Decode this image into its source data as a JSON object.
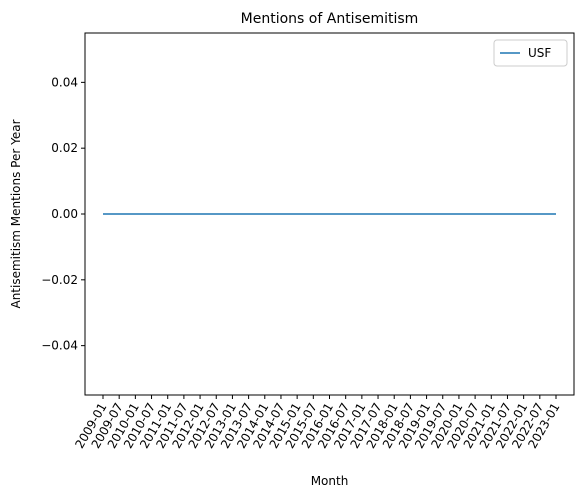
{
  "chart_data": {
    "type": "line",
    "title": "Mentions of Antisemitism",
    "xlabel": "Month",
    "ylabel": "Antisemitism Mentions Per Year",
    "ylim": [
      -0.055,
      0.055
    ],
    "yticks": [
      -0.04,
      -0.02,
      0.0,
      0.02,
      0.04
    ],
    "ytick_labels": [
      "−0.04",
      "−0.02",
      "0.00",
      "0.02",
      "0.04"
    ],
    "x_tick_labels": [
      "2009-01",
      "2009-07",
      "2010-01",
      "2010-07",
      "2011-01",
      "2011-07",
      "2012-01",
      "2012-07",
      "2013-01",
      "2013-07",
      "2014-01",
      "2014-07",
      "2015-01",
      "2015-07",
      "2016-01",
      "2016-07",
      "2017-01",
      "2017-07",
      "2018-01",
      "2018-07",
      "2019-01",
      "2019-07",
      "2020-01",
      "2020-07",
      "2021-01",
      "2021-07",
      "2022-01",
      "2022-07",
      "2023-01"
    ],
    "grid": false,
    "legend_position": "top-right",
    "series": [
      {
        "name": "USF",
        "color": "#1f77b4",
        "x": [
          "2009-01",
          "2009-07",
          "2010-01",
          "2010-07",
          "2011-01",
          "2011-07",
          "2012-01",
          "2012-07",
          "2013-01",
          "2013-07",
          "2014-01",
          "2014-07",
          "2015-01",
          "2015-07",
          "2016-01",
          "2016-07",
          "2017-01",
          "2017-07",
          "2018-01",
          "2018-07",
          "2019-01",
          "2019-07",
          "2020-01",
          "2020-07",
          "2021-01",
          "2021-07",
          "2022-01",
          "2022-07",
          "2023-01"
        ],
        "values": [
          0,
          0,
          0,
          0,
          0,
          0,
          0,
          0,
          0,
          0,
          0,
          0,
          0,
          0,
          0,
          0,
          0,
          0,
          0,
          0,
          0,
          0,
          0,
          0,
          0,
          0,
          0,
          0,
          0
        ]
      }
    ]
  }
}
